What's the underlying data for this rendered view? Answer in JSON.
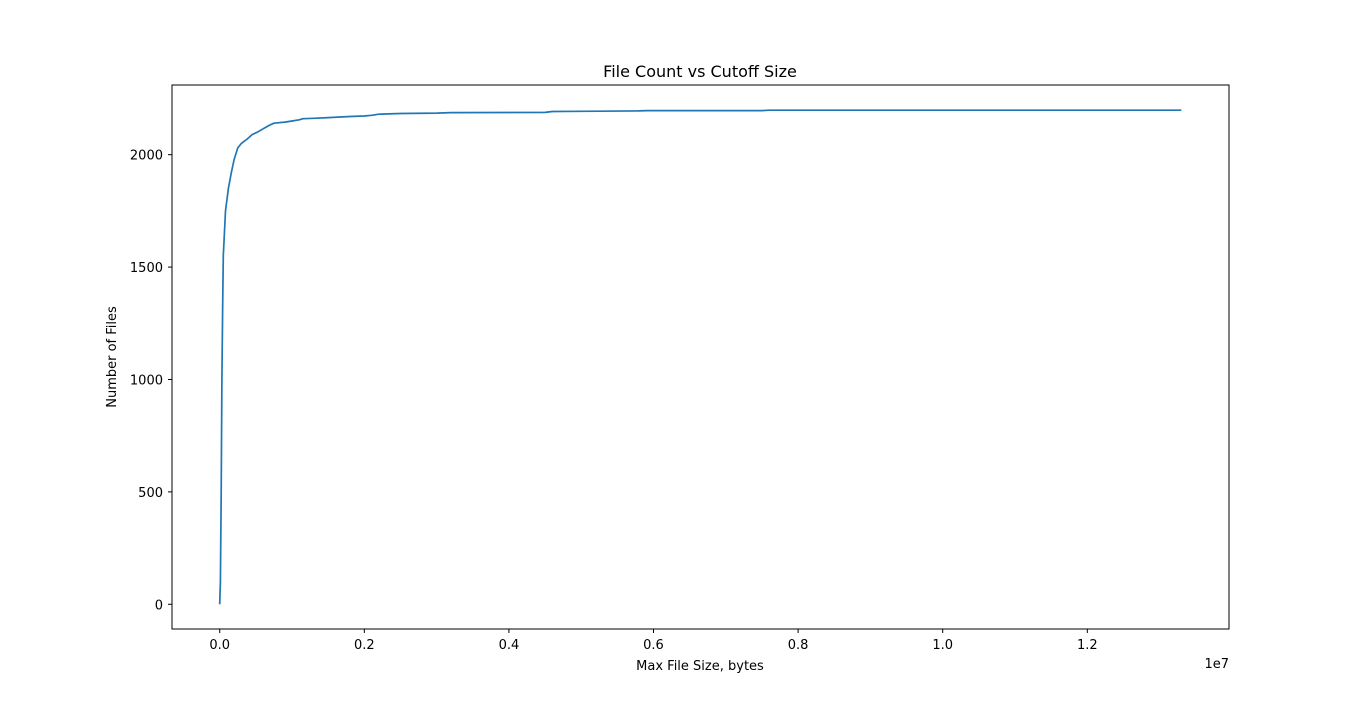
{
  "chart_data": {
    "type": "line",
    "title": "File Count vs Cutoff Size",
    "xlabel": "Max File Size, bytes",
    "ylabel": "Number of Files",
    "x_offset_label": "1e7",
    "x_multiplier": 10000000,
    "xlim": [
      -660000,
      13960000
    ],
    "ylim": [
      -110,
      2310
    ],
    "grid": false,
    "x_ticks": [
      0,
      2000000,
      4000000,
      6000000,
      8000000,
      10000000,
      12000000
    ],
    "x_tick_labels": [
      "0.0",
      "0.2",
      "0.4",
      "0.6",
      "0.8",
      "1.0",
      "1.2"
    ],
    "y_ticks": [
      0,
      500,
      1000,
      1500,
      2000
    ],
    "y_tick_labels": [
      "0",
      "500",
      "1000",
      "1500",
      "2000"
    ],
    "series": [
      {
        "color": "#1f77b4",
        "x": [
          0,
          10000,
          20000,
          30000,
          40000,
          50000,
          80000,
          120000,
          160000,
          200000,
          250000,
          300000,
          380000,
          450000,
          520000,
          600000,
          680000,
          750000,
          900000,
          1000000,
          1100000,
          1150000,
          1300000,
          1500000,
          1700000,
          1800000,
          2000000,
          2100000,
          2200000,
          2500000,
          3000000,
          3200000,
          4500000,
          4600000,
          5000000,
          5800000,
          5900000,
          7500000,
          7600000,
          13300000
        ],
        "values": [
          0,
          100,
          500,
          1000,
          1300,
          1550,
          1750,
          1850,
          1920,
          1980,
          2030,
          2050,
          2070,
          2090,
          2100,
          2115,
          2130,
          2140,
          2145,
          2150,
          2155,
          2160,
          2162,
          2165,
          2168,
          2170,
          2172,
          2175,
          2180,
          2183,
          2185,
          2187,
          2188,
          2192,
          2193,
          2195,
          2196,
          2196,
          2198,
          2198
        ]
      }
    ]
  }
}
